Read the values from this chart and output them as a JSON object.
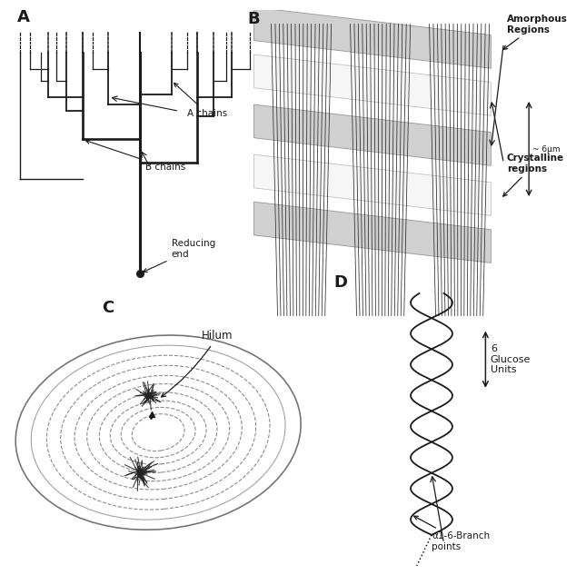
{
  "bg_color": "#ffffff",
  "line_color": "#1a1a1a",
  "gray_color": "#888888",
  "dark_gray": "#333333",
  "panel_A": "A",
  "panel_B": "B",
  "panel_C": "C",
  "panel_D": "D",
  "label_A_chains": "A chains",
  "label_B_chains": "B chains",
  "label_6um": "~ 6μm",
  "label_reducing_end": "Reducing\nend",
  "label_amorphous": "Amorphous\nRegions",
  "label_crystalline": "Crystalline\nregions",
  "label_hilum": "Hilum",
  "label_6glucose": "6\nGlucose\nUnits",
  "label_branch": "α1-6-Branch\npoints"
}
